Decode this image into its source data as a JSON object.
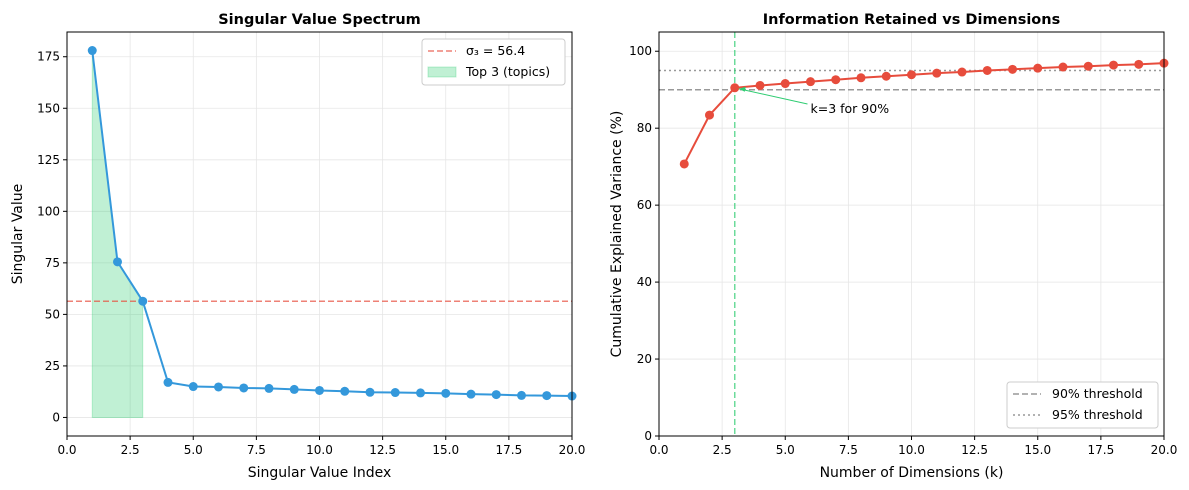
{
  "chart_data": [
    {
      "type": "line",
      "title": "Singular Value Spectrum",
      "xlabel": "Singular Value Index",
      "ylabel": "Singular Value",
      "xlim": [
        0,
        20
      ],
      "ylim": [
        -9,
        187
      ],
      "grid": true,
      "legend": "top-right",
      "xticks": [
        0,
        2.5,
        5,
        7.5,
        10,
        12.5,
        15,
        17.5,
        20
      ],
      "xtick_labels": [
        "0.0",
        "2.5",
        "5.0",
        "7.5",
        "10.0",
        "12.5",
        "15.0",
        "17.5",
        "20.0"
      ],
      "yticks": [
        0,
        25,
        50,
        75,
        100,
        125,
        150,
        175
      ],
      "ytick_labels": [
        "0",
        "25",
        "50",
        "75",
        "100",
        "125",
        "150",
        "175"
      ],
      "x": [
        1,
        2,
        3,
        4,
        5,
        6,
        7,
        8,
        9,
        10,
        11,
        12,
        13,
        14,
        15,
        16,
        17,
        18,
        19,
        20
      ],
      "series": [
        {
          "values": [
            178,
            75.5,
            56.4,
            17,
            15,
            14.8,
            14.3,
            14.1,
            13.6,
            13.1,
            12.7,
            12.2,
            12.1,
            11.9,
            11.7,
            11.3,
            11.1,
            10.7,
            10.6,
            10.4
          ],
          "color": "#3498db"
        }
      ],
      "hline": {
        "y": 56.4,
        "label": "σ₃ = 56.4",
        "color": "#e74c3c",
        "style": "dashed"
      },
      "fill": {
        "x": [
          1,
          2,
          3
        ],
        "label": "Top 3 (topics)",
        "color": "#2ecc71"
      }
    },
    {
      "type": "line",
      "title": "Information Retained vs Dimensions",
      "xlabel": "Number of Dimensions (k)",
      "ylabel": "Cumulative Explained Variance (%)",
      "xlim": [
        0,
        20
      ],
      "ylim": [
        0,
        105
      ],
      "grid": true,
      "legend": "bottom-right",
      "xticks": [
        0,
        2.5,
        5,
        7.5,
        10,
        12.5,
        15,
        17.5,
        20
      ],
      "xtick_labels": [
        "0.0",
        "2.5",
        "5.0",
        "7.5",
        "10.0",
        "12.5",
        "15.0",
        "17.5",
        "20.0"
      ],
      "yticks": [
        0,
        20,
        40,
        60,
        80,
        100
      ],
      "ytick_labels": [
        "0",
        "20",
        "40",
        "60",
        "80",
        "100"
      ],
      "x": [
        1,
        2,
        3,
        4,
        5,
        6,
        7,
        8,
        9,
        10,
        11,
        12,
        13,
        14,
        15,
        16,
        17,
        18,
        19,
        20
      ],
      "series": [
        {
          "values": [
            70.7,
            83.4,
            90.5,
            91.1,
            91.6,
            92.1,
            92.6,
            93.1,
            93.5,
            93.9,
            94.3,
            94.6,
            95.0,
            95.3,
            95.6,
            95.9,
            96.1,
            96.4,
            96.6,
            96.9
          ],
          "color": "#e74c3c"
        }
      ],
      "hlines": [
        {
          "y": 90,
          "label": "90% threshold",
          "color": "#999999",
          "style": "dashed"
        },
        {
          "y": 95,
          "label": "95% threshold",
          "color": "#999999",
          "style": "dotted"
        }
      ],
      "vline": {
        "x": 3,
        "color": "#2ecc71",
        "style": "dashed"
      },
      "annotation": {
        "text": "k=3 for 90%",
        "x": 3,
        "y": 90.5,
        "text_x": 6,
        "text_y": 85,
        "color": "#2ecc71"
      }
    }
  ]
}
